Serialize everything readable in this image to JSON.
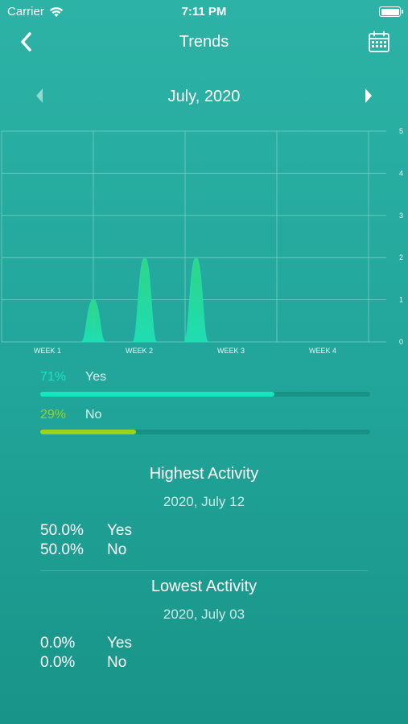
{
  "status_bar": {
    "carrier": "Carrier",
    "time": "7:11 PM"
  },
  "nav": {
    "title": "Trends",
    "back_icon": "chevron-left-icon",
    "calendar_icon": "calendar-icon"
  },
  "month_nav": {
    "label": "July, 2020",
    "prev_icon": "triangle-left-icon",
    "next_icon": "triangle-right-icon"
  },
  "chart_data": {
    "type": "area",
    "categories": [
      "WEEK 1",
      "WEEK 2",
      "WEEK 3",
      "WEEK 4"
    ],
    "y_ticks": [
      "0",
      "1",
      "2",
      "3",
      "4",
      "5"
    ],
    "ylim": [
      0,
      5
    ],
    "grid": true,
    "points": [
      {
        "x": 1.0,
        "y": 1
      },
      {
        "x": 1.56,
        "y": 2
      },
      {
        "x": 2.12,
        "y": 2
      }
    ],
    "colors": {
      "peak_light": "#1fe0b4",
      "peak_dark": "#30d884",
      "grid": "#7fd3ca"
    }
  },
  "breakdown": [
    {
      "id": "yes",
      "percent": "71%",
      "label": "Yes",
      "value": 0.71,
      "color": "#16e6bd"
    },
    {
      "id": "no",
      "percent": "29%",
      "label": "No",
      "value": 0.29,
      "color": "#9bd21b"
    }
  ],
  "highest": {
    "title": "Highest Activity",
    "date": "2020, July 12",
    "rows": [
      {
        "value": "50.0%",
        "label": "Yes"
      },
      {
        "value": "50.0%",
        "label": "No"
      }
    ]
  },
  "lowest": {
    "title": "Lowest Activity",
    "date": "2020, July 03",
    "rows": [
      {
        "value": "0.0%",
        "label": "Yes"
      },
      {
        "value": "0.0%",
        "label": "No"
      }
    ]
  }
}
